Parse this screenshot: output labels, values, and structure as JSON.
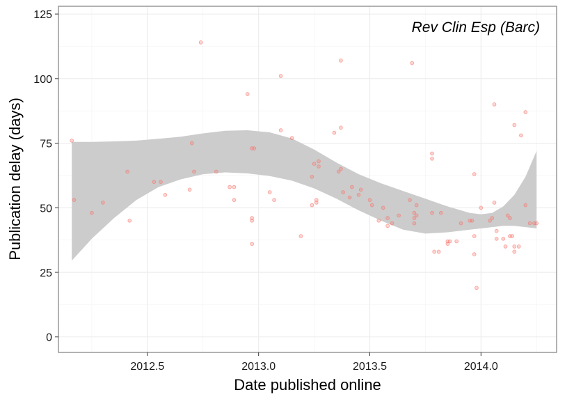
{
  "chart_data": {
    "type": "scatter",
    "title": "",
    "annotation": "Rev Clin Esp (Barc)",
    "xlabel": "Date published online",
    "ylabel": "Publication delay (days)",
    "xlim": [
      2012.1,
      2014.34
    ],
    "ylim": [
      -6,
      128
    ],
    "x_ticks": [
      2012.5,
      2013.0,
      2013.5,
      2014.0
    ],
    "x_tick_labels": [
      "2012.5",
      "2013.0",
      "2013.5",
      "2014.0"
    ],
    "y_ticks": [
      0,
      25,
      50,
      75,
      100,
      125
    ],
    "y_tick_labels": [
      "0",
      "25",
      "50",
      "75",
      "100",
      "125"
    ],
    "grid": true,
    "point_color": "#f8766d",
    "band_color": "#cccccc",
    "points": [
      [
        2012.16,
        76
      ],
      [
        2012.17,
        53
      ],
      [
        2012.25,
        48
      ],
      [
        2012.3,
        52
      ],
      [
        2012.41,
        64
      ],
      [
        2012.42,
        45
      ],
      [
        2012.53,
        60
      ],
      [
        2012.56,
        60
      ],
      [
        2012.58,
        55
      ],
      [
        2012.69,
        57
      ],
      [
        2012.7,
        75
      ],
      [
        2012.71,
        64
      ],
      [
        2012.74,
        114
      ],
      [
        2012.81,
        64
      ],
      [
        2012.87,
        58
      ],
      [
        2012.89,
        53
      ],
      [
        2012.89,
        58
      ],
      [
        2012.95,
        94
      ],
      [
        2012.97,
        46
      ],
      [
        2012.97,
        45
      ],
      [
        2012.97,
        36
      ],
      [
        2012.97,
        73
      ],
      [
        2012.98,
        73
      ],
      [
        2013.05,
        56
      ],
      [
        2013.07,
        53
      ],
      [
        2013.1,
        101
      ],
      [
        2013.1,
        80
      ],
      [
        2013.15,
        77
      ],
      [
        2013.19,
        39
      ],
      [
        2013.24,
        62
      ],
      [
        2013.24,
        51
      ],
      [
        2013.25,
        67
      ],
      [
        2013.26,
        52
      ],
      [
        2013.26,
        53
      ],
      [
        2013.27,
        68
      ],
      [
        2013.27,
        66
      ],
      [
        2013.34,
        79
      ],
      [
        2013.36,
        64
      ],
      [
        2013.37,
        65
      ],
      [
        2013.37,
        81
      ],
      [
        2013.37,
        107
      ],
      [
        2013.38,
        56
      ],
      [
        2013.41,
        54
      ],
      [
        2013.42,
        58
      ],
      [
        2013.45,
        55
      ],
      [
        2013.46,
        57
      ],
      [
        2013.5,
        53
      ],
      [
        2013.51,
        51
      ],
      [
        2013.54,
        45
      ],
      [
        2013.56,
        50
      ],
      [
        2013.58,
        43
      ],
      [
        2013.58,
        46
      ],
      [
        2013.6,
        44
      ],
      [
        2013.63,
        47
      ],
      [
        2013.68,
        53
      ],
      [
        2013.69,
        106
      ],
      [
        2013.7,
        46
      ],
      [
        2013.7,
        48
      ],
      [
        2013.7,
        44
      ],
      [
        2013.71,
        51
      ],
      [
        2013.71,
        47
      ],
      [
        2013.78,
        71
      ],
      [
        2013.78,
        69
      ],
      [
        2013.78,
        48
      ],
      [
        2013.79,
        33
      ],
      [
        2013.81,
        33
      ],
      [
        2013.82,
        48
      ],
      [
        2013.85,
        36
      ],
      [
        2013.85,
        37
      ],
      [
        2013.86,
        37
      ],
      [
        2013.89,
        37
      ],
      [
        2013.91,
        44
      ],
      [
        2013.95,
        45
      ],
      [
        2013.96,
        45
      ],
      [
        2013.97,
        63
      ],
      [
        2013.97,
        39
      ],
      [
        2013.97,
        32
      ],
      [
        2013.98,
        19
      ],
      [
        2014.0,
        50
      ],
      [
        2014.04,
        45
      ],
      [
        2014.05,
        46
      ],
      [
        2014.06,
        52
      ],
      [
        2014.06,
        90
      ],
      [
        2014.07,
        41
      ],
      [
        2014.07,
        38
      ],
      [
        2014.1,
        38
      ],
      [
        2014.11,
        35
      ],
      [
        2014.12,
        47
      ],
      [
        2014.13,
        46
      ],
      [
        2014.13,
        39
      ],
      [
        2014.14,
        39
      ],
      [
        2014.15,
        82
      ],
      [
        2014.15,
        33
      ],
      [
        2014.15,
        35
      ],
      [
        2014.17,
        35
      ],
      [
        2014.18,
        78
      ],
      [
        2014.2,
        87
      ],
      [
        2014.2,
        51
      ],
      [
        2014.22,
        44
      ],
      [
        2014.24,
        44
      ],
      [
        2014.25,
        44
      ]
    ],
    "confidence_band": {
      "x": [
        2012.16,
        2012.25,
        2012.35,
        2012.45,
        2012.55,
        2012.65,
        2012.75,
        2012.85,
        2012.95,
        2013.05,
        2013.15,
        2013.25,
        2013.35,
        2013.45,
        2013.55,
        2013.65,
        2013.75,
        2013.85,
        2013.95,
        2014.0,
        2014.05,
        2014.1,
        2014.15,
        2014.2,
        2014.25
      ],
      "lower": [
        29.5,
        38,
        46,
        53,
        58,
        61,
        63,
        63.7,
        63.3,
        62.3,
        60.5,
        57.5,
        53.5,
        49,
        45,
        41.5,
        40,
        40.5,
        41.5,
        42,
        42.5,
        43,
        43,
        42.5,
        42
      ],
      "upper": [
        75.5,
        75.5,
        75.7,
        76,
        76.7,
        77.5,
        78.8,
        79.8,
        80,
        79.2,
        76.8,
        72.5,
        67.5,
        63,
        59.5,
        56.5,
        53.5,
        50.5,
        48,
        47.5,
        48,
        50.5,
        55,
        62,
        72
      ]
    }
  }
}
